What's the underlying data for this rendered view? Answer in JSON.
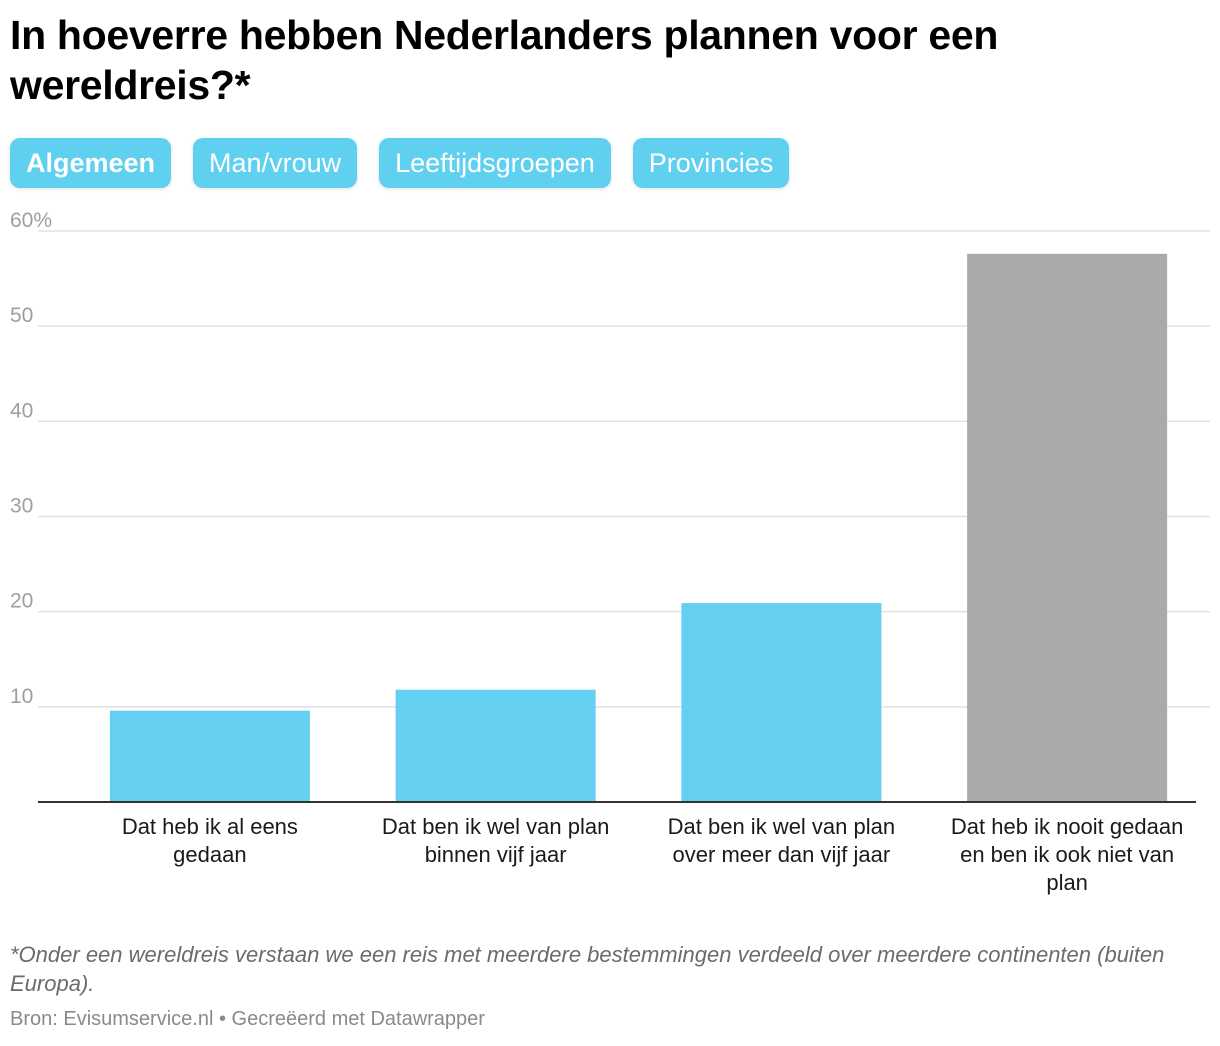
{
  "title": "In hoeverre hebben Nederlanders plannen voor een wereldreis?*",
  "tabs": [
    {
      "label": "Algemeen",
      "active": true
    },
    {
      "label": "Man/vrouw",
      "active": false
    },
    {
      "label": "Leeftijdsgroepen",
      "active": false
    },
    {
      "label": "Provincies",
      "active": false
    }
  ],
  "chart_data": {
    "type": "bar",
    "title": "In hoeverre hebben Nederlanders plannen voor een wereldreis?*",
    "xlabel": "",
    "ylabel": "",
    "categories": [
      [
        "Dat heb ik al eens",
        "gedaan"
      ],
      [
        "Dat ben ik wel van plan",
        "binnen vijf jaar"
      ],
      [
        "Dat ben ik wel van plan",
        "over meer dan vijf jaar"
      ],
      [
        "Dat heb ik nooit gedaan",
        "en ben ik ook niet van",
        "plan"
      ]
    ],
    "values": [
      9.6,
      11.8,
      20.9,
      57.6
    ],
    "colors": [
      "#64cff0",
      "#64cff0",
      "#64cff0",
      "#aaaaaa"
    ],
    "ylim": [
      0,
      60
    ],
    "yticks": [
      {
        "value": 10,
        "label": "10"
      },
      {
        "value": 20,
        "label": "20"
      },
      {
        "value": 30,
        "label": "30"
      },
      {
        "value": 40,
        "label": "40"
      },
      {
        "value": 50,
        "label": "50"
      },
      {
        "value": 60,
        "label": "60%"
      }
    ],
    "grid": true,
    "legend": "none"
  },
  "footnote": "*Onder een wereldreis verstaan we een reis met meerdere bestemmingen verdeeld over meerdere continenten (buiten Europa).",
  "source": "Bron: Evisumservice.nl • Gecreëerd met Datawrapper",
  "colors": {
    "accent": "#5fd0ef",
    "bar_highlight": "#64cff0",
    "bar_muted": "#aaaaaa",
    "gridline": "#e0e0e0",
    "axis": "#333333",
    "tick_label": "#9e9e9e"
  }
}
